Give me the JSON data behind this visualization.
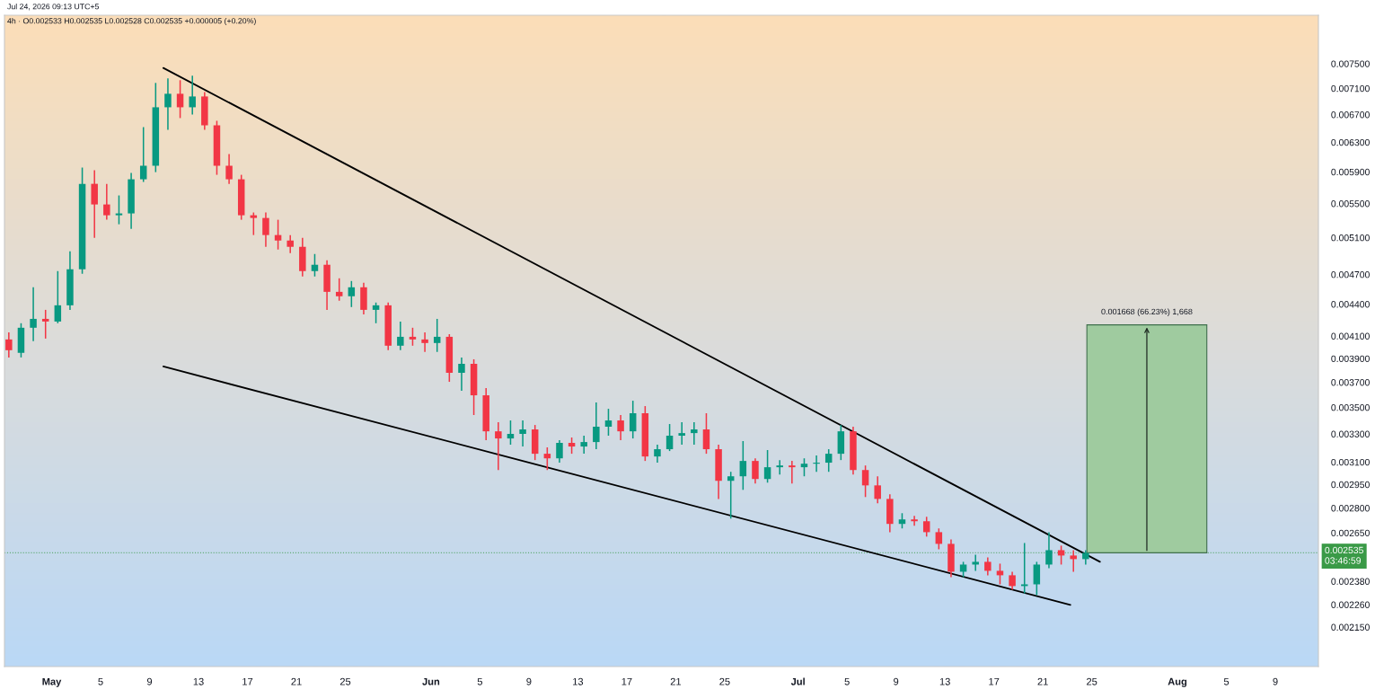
{
  "chart_data": {
    "type": "candlestick",
    "x": [
      "2026-04-27T12:00",
      "2026-04-28T12:00",
      "2026-04-29T12:00",
      "2026-04-30T12:00",
      "2026-05-01T12:00",
      "2026-05-02T12:00",
      "2026-05-03T12:00",
      "2026-05-04T12:00",
      "2026-05-05T12:00",
      "2026-05-06T12:00",
      "2026-05-07T12:00",
      "2026-05-08T12:00",
      "2026-05-09T12:00",
      "2026-05-10T12:00",
      "2026-05-11T12:00",
      "2026-05-12T12:00",
      "2026-05-13T12:00",
      "2026-05-14T12:00",
      "2026-05-15T12:00",
      "2026-05-16T12:00",
      "2026-05-17T12:00",
      "2026-05-18T12:00",
      "2026-05-19T12:00",
      "2026-05-20T12:00",
      "2026-05-21T12:00",
      "2026-05-22T12:00",
      "2026-05-23T12:00",
      "2026-05-24T12:00",
      "2026-05-25T12:00",
      "2026-05-26T12:00",
      "2026-05-27T12:00",
      "2026-05-28T12:00",
      "2026-05-29T12:00",
      "2026-05-30T12:00",
      "2026-05-31T12:00",
      "2026-06-01T12:00",
      "2026-06-02T12:00",
      "2026-06-03T12:00",
      "2026-06-04T12:00",
      "2026-06-05T12:00",
      "2026-06-06T12:00",
      "2026-06-07T12:00",
      "2026-06-08T12:00",
      "2026-06-09T12:00",
      "2026-06-10T12:00",
      "2026-06-11T12:00",
      "2026-06-12T12:00",
      "2026-06-13T12:00",
      "2026-06-14T12:00",
      "2026-06-15T12:00",
      "2026-06-16T12:00",
      "2026-06-17T12:00",
      "2026-06-18T12:00",
      "2026-06-19T12:00",
      "2026-06-20T12:00",
      "2026-06-21T12:00",
      "2026-06-22T12:00",
      "2026-06-23T12:00",
      "2026-06-24T12:00",
      "2026-06-25T12:00",
      "2026-06-26T12:00",
      "2026-06-27T12:00",
      "2026-06-28T12:00",
      "2026-06-29T12:00",
      "2026-06-30T12:00",
      "2026-07-01T12:00",
      "2026-07-02T12:00",
      "2026-07-03T12:00",
      "2026-07-04T12:00",
      "2026-07-05T12:00",
      "2026-07-06T12:00",
      "2026-07-07T12:00",
      "2026-07-08T12:00",
      "2026-07-09T12:00",
      "2026-07-10T12:00",
      "2026-07-11T12:00",
      "2026-07-12T12:00",
      "2026-07-13T12:00",
      "2026-07-14T12:00",
      "2026-07-15T12:00",
      "2026-07-16T12:00",
      "2026-07-17T12:00",
      "2026-07-18T12:00",
      "2026-07-19T12:00",
      "2026-07-20T12:00",
      "2026-07-21T12:00",
      "2026-07-22T12:00",
      "2026-07-23T12:00",
      "2026-07-24T12:00"
    ],
    "ohlc": [
      [
        0.004069,
        0.004134,
        0.00391,
        0.003973
      ],
      [
        0.00395,
        0.004218,
        0.00391,
        0.004176
      ],
      [
        0.004176,
        0.004568,
        0.004053,
        0.004259
      ],
      [
        0.004259,
        0.004345,
        0.004077,
        0.004234
      ],
      [
        0.004234,
        0.004735,
        0.004218,
        0.004389
      ],
      [
        0.004389,
        0.004948,
        0.004345,
        0.004754
      ],
      [
        0.004754,
        0.005957,
        0.004707,
        0.005746
      ],
      [
        0.005746,
        0.005921,
        0.005098,
        0.005489
      ],
      [
        0.005489,
        0.005746,
        0.005306,
        0.005359
      ],
      [
        0.005359,
        0.0056,
        0.005253,
        0.005381
      ],
      [
        0.005381,
        0.005886,
        0.005201,
        0.005804
      ],
      [
        0.005804,
        0.006516,
        0.00577,
        0.005981
      ],
      [
        0.005981,
        0.007187,
        0.005897,
        0.006809
      ],
      [
        0.006809,
        0.007259,
        0.006477,
        0.007016
      ],
      [
        0.007016,
        0.00723,
        0.006648,
        0.006809
      ],
      [
        0.006809,
        0.007302,
        0.006701,
        0.006974
      ],
      [
        0.006974,
        0.007044,
        0.006477,
        0.006542
      ],
      [
        0.006542,
        0.006608,
        0.005862,
        0.005981
      ],
      [
        0.005981,
        0.006138,
        0.005746,
        0.005804
      ],
      [
        0.005804,
        0.005862,
        0.005306,
        0.005359
      ],
      [
        0.005359,
        0.005392,
        0.005129,
        0.005327
      ],
      [
        0.005327,
        0.005392,
        0.004997,
        0.005129
      ],
      [
        0.005129,
        0.005306,
        0.004967,
        0.005067
      ],
      [
        0.005067,
        0.005129,
        0.004928,
        0.004997
      ],
      [
        0.004997,
        0.005098,
        0.004679,
        0.004735
      ],
      [
        0.004735,
        0.004918,
        0.004679,
        0.004802
      ],
      [
        0.004802,
        0.00485,
        0.004345,
        0.004522
      ],
      [
        0.004522,
        0.00466,
        0.004434,
        0.004478
      ],
      [
        0.004478,
        0.004632,
        0.004372,
        0.004568
      ],
      [
        0.004568,
        0.004614,
        0.004302,
        0.004345
      ],
      [
        0.004345,
        0.004416,
        0.004218,
        0.004389
      ],
      [
        0.004389,
        0.004416,
        0.003973,
        0.004013
      ],
      [
        0.004013,
        0.004234,
        0.003973,
        0.004093
      ],
      [
        0.004093,
        0.004176,
        0.004013,
        0.004069
      ],
      [
        0.004069,
        0.004134,
        0.003958,
        0.004037
      ],
      [
        0.004037,
        0.004259,
        0.003958,
        0.004093
      ],
      [
        0.004093,
        0.004117,
        0.003704,
        0.003779
      ],
      [
        0.003779,
        0.00391,
        0.003631,
        0.003855
      ],
      [
        0.003855,
        0.003894,
        0.003441,
        0.003595
      ],
      [
        0.003595,
        0.003653,
        0.003254,
        0.003319
      ],
      [
        0.003319,
        0.003386,
        0.003046,
        0.003267
      ],
      [
        0.003267,
        0.0034,
        0.003222,
        0.0033
      ],
      [
        0.0033,
        0.0034,
        0.003209,
        0.003333
      ],
      [
        0.003333,
        0.003366,
        0.003114,
        0.003158
      ],
      [
        0.003158,
        0.003203,
        0.003046,
        0.003126
      ],
      [
        0.003126,
        0.003254,
        0.003096,
        0.003235
      ],
      [
        0.003235,
        0.003274,
        0.003158,
        0.003209
      ],
      [
        0.003209,
        0.003287,
        0.003158,
        0.003241
      ],
      [
        0.003241,
        0.003538,
        0.00319,
        0.003353
      ],
      [
        0.003353,
        0.003489,
        0.003287,
        0.0034
      ],
      [
        0.0034,
        0.003441,
        0.003254,
        0.003319
      ],
      [
        0.003319,
        0.003552,
        0.003267,
        0.003455
      ],
      [
        0.003455,
        0.00351,
        0.003108,
        0.003139
      ],
      [
        0.003139,
        0.003222,
        0.003096,
        0.00319
      ],
      [
        0.00319,
        0.003373,
        0.003177,
        0.003287
      ],
      [
        0.003287,
        0.003386,
        0.003222,
        0.003306
      ],
      [
        0.003306,
        0.003386,
        0.003222,
        0.003333
      ],
      [
        0.003333,
        0.003455,
        0.003158,
        0.00319
      ],
      [
        0.00319,
        0.003222,
        0.002857,
        0.002974
      ],
      [
        0.002974,
        0.003034,
        0.002735,
        0.003004
      ],
      [
        0.003004,
        0.003248,
        0.002915,
        0.003108
      ],
      [
        0.003108,
        0.003126,
        0.002956,
        0.002986
      ],
      [
        0.002986,
        0.003184,
        0.002962,
        0.003065
      ],
      [
        0.003065,
        0.003114,
        0.003016,
        0.003077
      ],
      [
        0.003077,
        0.003108,
        0.002956,
        0.003065
      ],
      [
        0.003065,
        0.003126,
        0.003004,
        0.003089
      ],
      [
        0.003089,
        0.003146,
        0.003034,
        0.003096
      ],
      [
        0.003096,
        0.00319,
        0.003034,
        0.003158
      ],
      [
        0.003158,
        0.003366,
        0.003114,
        0.003319
      ],
      [
        0.003319,
        0.003353,
        0.003016,
        0.003046
      ],
      [
        0.003046,
        0.003077,
        0.002869,
        0.002944
      ],
      [
        0.002944,
        0.003004,
        0.002829,
        0.002857
      ],
      [
        0.002857,
        0.002886,
        0.002654,
        0.002703
      ],
      [
        0.002703,
        0.002768,
        0.002676,
        0.00273
      ],
      [
        0.00273,
        0.002751,
        0.002692,
        0.002719
      ],
      [
        0.002719,
        0.002746,
        0.002628,
        0.002654
      ],
      [
        0.002654,
        0.002676,
        0.002555,
        0.002586
      ],
      [
        0.002586,
        0.002612,
        0.002402,
        0.002431
      ],
      [
        0.002431,
        0.002485,
        0.002402,
        0.00247
      ],
      [
        0.00247,
        0.002525,
        0.002436,
        0.002485
      ],
      [
        0.002485,
        0.00251,
        0.002412,
        0.002436
      ],
      [
        0.002436,
        0.002475,
        0.002364,
        0.002412
      ],
      [
        0.002412,
        0.002431,
        0.002336,
        0.002355
      ],
      [
        0.002355,
        0.002591,
        0.002317,
        0.002364
      ],
      [
        0.002364,
        0.002485,
        0.002308,
        0.00247
      ],
      [
        0.00247,
        0.002654,
        0.00245,
        0.00255
      ],
      [
        0.00255,
        0.002576,
        0.00247,
        0.00252
      ],
      [
        0.00252,
        0.00255,
        0.002431,
        0.0025
      ],
      [
        0.0025,
        0.00255,
        0.00247,
        0.002535
      ]
    ],
    "colors": [
      "#f23645",
      "#089981",
      "#089981",
      "#f23645",
      "#089981",
      "#089981",
      "#089981",
      "#f23645",
      "#f23645",
      "#089981",
      "#089981",
      "#089981",
      "#089981",
      "#089981",
      "#f23645",
      "#089981",
      "#f23645",
      "#f23645",
      "#f23645",
      "#f23645",
      "#f23645",
      "#f23645",
      "#f23645",
      "#f23645",
      "#f23645",
      "#089981",
      "#f23645",
      "#f23645",
      "#089981",
      "#f23645",
      "#089981",
      "#f23645",
      "#089981",
      "#f23645",
      "#f23645",
      "#089981",
      "#f23645",
      "#089981",
      "#f23645",
      "#f23645",
      "#f23645",
      "#089981",
      "#089981",
      "#f23645",
      "#f23645",
      "#089981",
      "#f23645",
      "#089981",
      "#089981",
      "#089981",
      "#f23645",
      "#089981",
      "#f23645",
      "#089981",
      "#089981",
      "#089981",
      "#089981",
      "#f23645",
      "#f23645",
      "#089981",
      "#089981",
      "#f23645",
      "#089981",
      "#089981",
      "#f23645",
      "#089981",
      "#089981",
      "#089981",
      "#089981",
      "#f23645",
      "#f23645",
      "#f23645",
      "#f23645",
      "#089981",
      "#f23645",
      "#f23645",
      "#f23645",
      "#f23645",
      "#089981",
      "#089981",
      "#f23645",
      "#f23645",
      "#f23645",
      "#089981",
      "#089981",
      "#089981",
      "#f23645",
      "#f23645",
      "#089981"
    ],
    "series": [
      {
        "type": "line",
        "x": [
          "2026-05-10T03:00",
          "2026-07-25T16:00"
        ],
        "values": [
          0.00743,
          0.002485
        ],
        "color": "#000000"
      },
      {
        "type": "line",
        "x": [
          "2026-05-10T03:00",
          "2026-07-23T06:00"
        ],
        "values": [
          0.003832,
          0.002259
        ],
        "color": "#000000"
      },
      {
        "type": "bar",
        "x": [
          "2026-07-29T12:00"
        ],
        "values": [
          0.001668
        ],
        "base": [
          0.002535
        ],
        "color": "#9fcb9f",
        "value_labels": [
          "0.001668 (66.23%) 1,668"
        ]
      }
    ],
    "log": "y",
    "xlim": [
      "2026-04-27T03:30",
      "2026-08-12T12:30"
    ],
    "xticks": [
      {
        "value": "2026-05-01",
        "label": "May"
      },
      {
        "value": "2026-05-05",
        "label": "5"
      },
      {
        "value": "2026-05-09",
        "label": "9"
      },
      {
        "value": "2026-05-13",
        "label": "13"
      },
      {
        "value": "2026-05-17",
        "label": "17"
      },
      {
        "value": "2026-05-21",
        "label": "21"
      },
      {
        "value": "2026-05-25",
        "label": "25"
      },
      {
        "value": "2026-06-01",
        "label": "Jun"
      },
      {
        "value": "2026-06-05",
        "label": "5"
      },
      {
        "value": "2026-06-09",
        "label": "9"
      },
      {
        "value": "2026-06-13",
        "label": "13"
      },
      {
        "value": "2026-06-17",
        "label": "17"
      },
      {
        "value": "2026-06-21",
        "label": "21"
      },
      {
        "value": "2026-06-25",
        "label": "25"
      },
      {
        "value": "2026-07-01",
        "label": "Jul"
      },
      {
        "value": "2026-07-05",
        "label": "5"
      },
      {
        "value": "2026-07-09",
        "label": "9"
      },
      {
        "value": "2026-07-13",
        "label": "13"
      },
      {
        "value": "2026-07-17",
        "label": "17"
      },
      {
        "value": "2026-07-21",
        "label": "21"
      },
      {
        "value": "2026-07-25",
        "label": "25"
      },
      {
        "value": "2026-08-01",
        "label": "Aug"
      },
      {
        "value": "2026-08-05",
        "label": "5"
      },
      {
        "value": "2026-08-09",
        "label": "9"
      }
    ],
    "ylim": [
      0.00197,
      0.00835
    ],
    "yticks": [
      {
        "value": 0.0075,
        "label": "0.007500"
      },
      {
        "value": 0.0071,
        "label": "0.007100"
      },
      {
        "value": 0.0067,
        "label": "0.006700"
      },
      {
        "value": 0.0063,
        "label": "0.006300"
      },
      {
        "value": 0.0059,
        "label": "0.005900"
      },
      {
        "value": 0.0055,
        "label": "0.005500"
      },
      {
        "value": 0.0051,
        "label": "0.005100"
      },
      {
        "value": 0.0047,
        "label": "0.004700"
      },
      {
        "value": 0.0044,
        "label": "0.004400"
      },
      {
        "value": 0.0041,
        "label": "0.004100"
      },
      {
        "value": 0.0039,
        "label": "0.003900"
      },
      {
        "value": 0.0037,
        "label": "0.003700"
      },
      {
        "value": 0.0035,
        "label": "0.003500"
      },
      {
        "value": 0.0033,
        "label": "0.003300"
      },
      {
        "value": 0.0031,
        "label": "0.003100"
      },
      {
        "value": 0.00295,
        "label": "0.002950"
      },
      {
        "value": 0.0028,
        "label": "0.002800"
      },
      {
        "value": 0.00265,
        "label": "0.002650"
      },
      {
        "value": 0.00238,
        "label": "0.002380"
      },
      {
        "value": 0.00226,
        "label": "0.002260"
      },
      {
        "value": 0.00215,
        "label": "0.002150"
      }
    ],
    "ref_lines": [
      {
        "axis": "y",
        "value": 0.002535,
        "label": "0.002535\n03:46:59",
        "color": "#3a9a47",
        "line_style": "dotted"
      }
    ],
    "annotations": [
      "Jul 24, 2026 09:13 UTC+5",
      "4h · O0.002533 H0.002535 L0.002528 C0.002535 +0.000005 (+0.20%)"
    ]
  }
}
